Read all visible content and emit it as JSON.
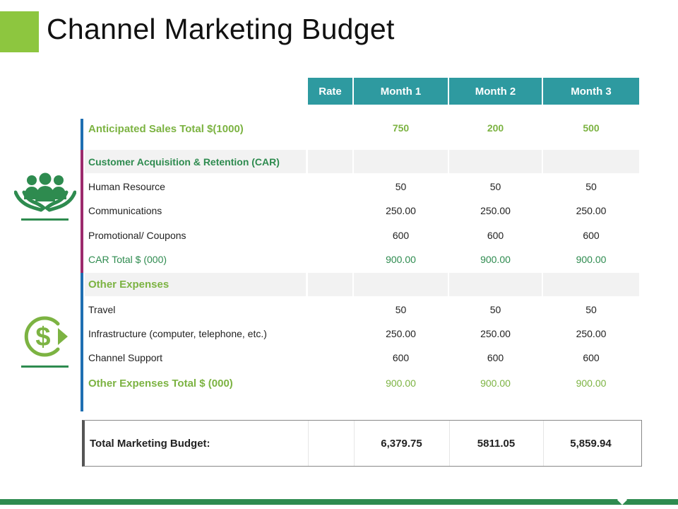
{
  "title": "Channel Marketing Budget",
  "colors": {
    "accent_green": "#8dc63f",
    "header_teal": "#2e9aa0",
    "dark_green": "#2e8b4f",
    "label_green": "#7cb342",
    "car_bar": "#9c2a6d",
    "blue_bar": "#1f6fb2"
  },
  "icons": {
    "car_section": "people-in-hands-icon",
    "expenses_section": "dollar-cycle-icon"
  },
  "headers": [
    "Rate",
    "Month 1",
    "Month 2",
    "Month 3"
  ],
  "anticipated": {
    "label": "Anticipated Sales Total $(1000)",
    "m1": "750",
    "m2": "200",
    "m3": "500"
  },
  "car": {
    "header": "Customer Acquisition & Retention (CAR)",
    "rows": [
      {
        "label": "Human Resource",
        "m1": "50",
        "m2": "50",
        "m3": "50"
      },
      {
        "label": "Communications",
        "m1": "250.00",
        "m2": "250.00",
        "m3": "250.00"
      },
      {
        "label": "Promotional/ Coupons",
        "m1": "600",
        "m2": "600",
        "m3": "600"
      }
    ],
    "total": {
      "label": "CAR Total $ (000)",
      "m1": "900.00",
      "m2": "900.00",
      "m3": "900.00"
    }
  },
  "other": {
    "header": "Other Expenses",
    "rows": [
      {
        "label": "Travel",
        "m1": "50",
        "m2": "50",
        "m3": "50"
      },
      {
        "label": "Infrastructure (computer, telephone, etc.)",
        "m1": "250.00",
        "m2": "250.00",
        "m3": "250.00"
      },
      {
        "label": "Channel Support",
        "m1": "600",
        "m2": "600",
        "m3": "600"
      }
    ],
    "total": {
      "label": "Other Expenses Total $ (000)",
      "m1": "900.00",
      "m2": "900.00",
      "m3": "900.00"
    }
  },
  "grand_total": {
    "label": "Total Marketing Budget:",
    "m1": "6,379.75",
    "m2": "5811.05",
    "m3": "5,859.94"
  }
}
